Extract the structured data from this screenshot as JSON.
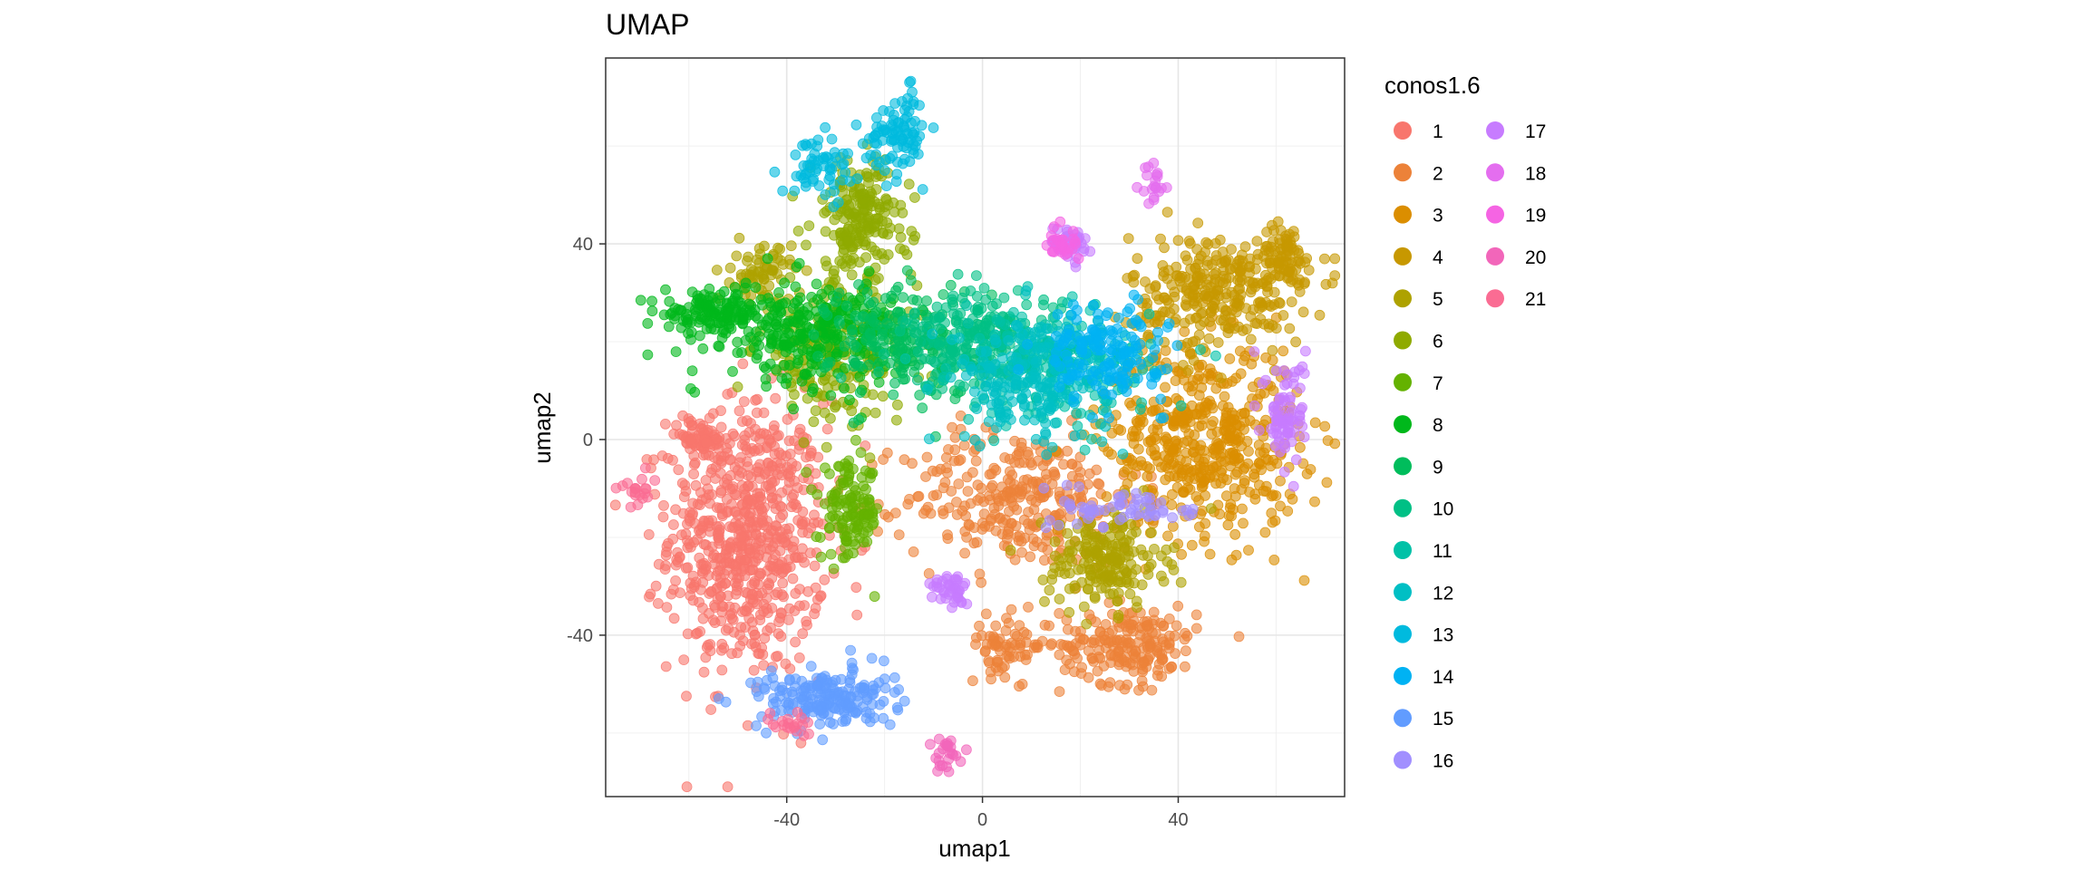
{
  "chart_data": {
    "type": "scatter",
    "title": "UMAP",
    "xlabel": "umap1",
    "ylabel": "umap2",
    "xlim": [
      -77,
      74
    ],
    "ylim": [
      -73,
      78
    ],
    "x_ticks": [
      -40,
      0,
      40
    ],
    "y_ticks": [
      -40,
      0,
      40
    ],
    "x_tick_labels": [
      "-40",
      "0",
      "40"
    ],
    "y_tick_labels": [
      "-40",
      "0",
      "40"
    ],
    "grid": true,
    "legend": {
      "title": "conos1.6",
      "placement": "right",
      "entries": [
        {
          "label": "1",
          "color": "#F8766D"
        },
        {
          "label": "2",
          "color": "#EC8239"
        },
        {
          "label": "3",
          "color": "#DB8E00"
        },
        {
          "label": "4",
          "color": "#C79800"
        },
        {
          "label": "5",
          "color": "#AEA200"
        },
        {
          "label": "6",
          "color": "#8FAA00"
        },
        {
          "label": "7",
          "color": "#64B200"
        },
        {
          "label": "8",
          "color": "#00B81B"
        },
        {
          "label": "9",
          "color": "#00BD5C"
        },
        {
          "label": "10",
          "color": "#00C085"
        },
        {
          "label": "11",
          "color": "#00C1A7"
        },
        {
          "label": "12",
          "color": "#00BFC4"
        },
        {
          "label": "13",
          "color": "#00BADE"
        },
        {
          "label": "14",
          "color": "#00B2F3"
        },
        {
          "label": "15",
          "color": "#619CFF"
        },
        {
          "label": "16",
          "color": "#A18FFF"
        },
        {
          "label": "17",
          "color": "#C77CFF"
        },
        {
          "label": "18",
          "color": "#E46EEF"
        },
        {
          "label": "19",
          "color": "#F564E3"
        },
        {
          "label": "20",
          "color": "#F266BA"
        },
        {
          "label": "21",
          "color": "#FA6C93"
        }
      ]
    },
    "clusters": [
      {
        "label": "1",
        "cx": -48,
        "cy": -20,
        "sx": 8,
        "sy": 14,
        "n": 700
      },
      {
        "label": "1",
        "cx": -58,
        "cy": 0,
        "sx": 3,
        "sy": 2,
        "n": 60
      },
      {
        "label": "2",
        "cx": 8,
        "cy": -12,
        "sx": 12,
        "sy": 7,
        "n": 320
      },
      {
        "label": "2",
        "cx": 30,
        "cy": -42,
        "sx": 7,
        "sy": 4,
        "n": 200
      },
      {
        "label": "2",
        "cx": 5,
        "cy": -42,
        "sx": 4,
        "sy": 3,
        "n": 70
      },
      {
        "label": "3",
        "cx": 45,
        "cy": 0,
        "sx": 10,
        "sy": 10,
        "n": 500
      },
      {
        "label": "4",
        "cx": 48,
        "cy": 30,
        "sx": 9,
        "sy": 6,
        "n": 300
      },
      {
        "label": "4",
        "cx": 62,
        "cy": 38,
        "sx": 2.5,
        "sy": 3,
        "n": 70
      },
      {
        "label": "5",
        "cx": 25,
        "cy": -25,
        "sx": 6,
        "sy": 5,
        "n": 200
      },
      {
        "label": "5",
        "cx": -45,
        "cy": 34,
        "sx": 3,
        "sy": 3,
        "n": 70
      },
      {
        "label": "6",
        "cx": -25,
        "cy": 45,
        "sx": 5,
        "sy": 6,
        "n": 200
      },
      {
        "label": "6",
        "cx": -30,
        "cy": 18,
        "sx": 8,
        "sy": 7,
        "n": 200
      },
      {
        "label": "7",
        "cx": -27,
        "cy": -15,
        "sx": 3,
        "sy": 5,
        "n": 130
      },
      {
        "label": "8",
        "cx": -55,
        "cy": 26,
        "sx": 5,
        "sy": 2,
        "n": 120
      },
      {
        "label": "8",
        "cx": -35,
        "cy": 22,
        "sx": 10,
        "sy": 5,
        "n": 300
      },
      {
        "label": "9",
        "cx": -15,
        "cy": 20,
        "sx": 8,
        "sy": 6,
        "n": 200
      },
      {
        "label": "10",
        "cx": 0,
        "cy": 20,
        "sx": 8,
        "sy": 5,
        "n": 220
      },
      {
        "label": "11",
        "cx": 15,
        "cy": 15,
        "sx": 10,
        "sy": 6,
        "n": 220
      },
      {
        "label": "12",
        "cx": 10,
        "cy": 12,
        "sx": 8,
        "sy": 6,
        "n": 200
      },
      {
        "label": "13",
        "cx": -17,
        "cy": 63,
        "sx": 3,
        "sy": 4,
        "n": 90
      },
      {
        "label": "13",
        "cx": -33,
        "cy": 56,
        "sx": 4,
        "sy": 3,
        "n": 60
      },
      {
        "label": "14",
        "cx": 25,
        "cy": 18,
        "sx": 6,
        "sy": 5,
        "n": 160
      },
      {
        "label": "15",
        "cx": -32,
        "cy": -53,
        "sx": 7,
        "sy": 3,
        "n": 200
      },
      {
        "label": "16",
        "cx": 30,
        "cy": -14,
        "sx": 7,
        "sy": 2,
        "n": 60
      },
      {
        "label": "17",
        "cx": 62,
        "cy": 5,
        "sx": 2,
        "sy": 6,
        "n": 80
      },
      {
        "label": "17",
        "cx": -6,
        "cy": -31,
        "sx": 2,
        "sy": 2,
        "n": 40
      },
      {
        "label": "17",
        "cx": 18,
        "cy": 40,
        "sx": 2,
        "sy": 2,
        "n": 40
      },
      {
        "label": "18",
        "cx": 35,
        "cy": 52,
        "sx": 1.2,
        "sy": 2,
        "n": 20
      },
      {
        "label": "19",
        "cx": 16,
        "cy": 40,
        "sx": 2,
        "sy": 2,
        "n": 30
      },
      {
        "label": "20",
        "cx": -7,
        "cy": -64,
        "sx": 1.5,
        "sy": 2,
        "n": 25
      },
      {
        "label": "21",
        "cx": -70,
        "cy": -10,
        "sx": 2,
        "sy": 2,
        "n": 20
      },
      {
        "label": "21",
        "cx": -39,
        "cy": -58,
        "sx": 2,
        "sy": 1.5,
        "n": 20
      }
    ]
  }
}
